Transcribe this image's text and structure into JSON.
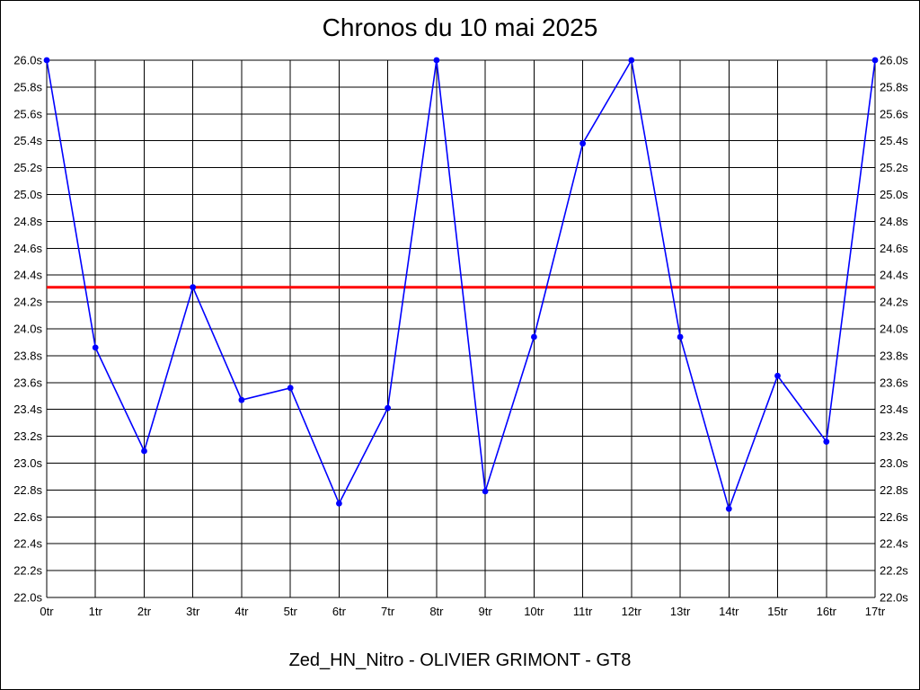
{
  "title": "Chronos du 10 mai 2025",
  "footer": "Zed_HN_Nitro - OLIVIER GRIMONT - GT8",
  "chart_data": {
    "type": "line",
    "title": "Chronos du 10 mai 2025",
    "subtitle": "Zed_HN_Nitro - OLIVIER GRIMONT - GT8",
    "xlabel": "",
    "ylabel": "",
    "categories": [
      "0tr",
      "1tr",
      "2tr",
      "3tr",
      "4tr",
      "5tr",
      "6tr",
      "7tr",
      "8tr",
      "9tr",
      "10tr",
      "11tr",
      "12tr",
      "13tr",
      "14tr",
      "15tr",
      "16tr",
      "17tr"
    ],
    "values": [
      26.0,
      23.86,
      23.09,
      24.31,
      23.47,
      23.56,
      22.7,
      23.41,
      26.0,
      22.79,
      23.94,
      25.38,
      26.0,
      23.94,
      22.66,
      23.65,
      23.16,
      26.0
    ],
    "ylim": [
      22.0,
      26.0
    ],
    "ytick_values": [
      26.0,
      25.8,
      25.6,
      25.4,
      25.2,
      25.0,
      24.8,
      24.6,
      24.4,
      24.2,
      24.0,
      23.8,
      23.6,
      23.4,
      23.2,
      23.0,
      22.8,
      22.6,
      22.4,
      22.2,
      22.0
    ],
    "ytick_labels": [
      "26.0s",
      "25.8s",
      "25.6s",
      "25.4s",
      "25.2s",
      "25.0s",
      "24.8s",
      "24.6s",
      "24.4s",
      "24.2s",
      "24.0s",
      "23.8s",
      "23.6s",
      "23.4s",
      "23.2s",
      "23.0s",
      "22.8s",
      "22.6s",
      "22.4s",
      "22.2s",
      "22.0s"
    ],
    "ytick_labels_right": true,
    "grid": true,
    "legend": "none",
    "reference_line": {
      "value": 24.31,
      "color": "#ff0000"
    },
    "series_color": "#0000ff",
    "grid_color": "#000000",
    "marker": "dot"
  }
}
